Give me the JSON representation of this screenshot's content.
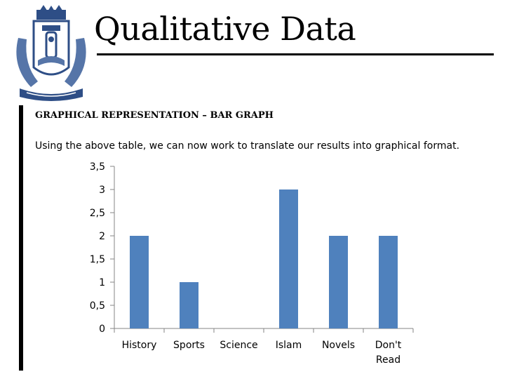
{
  "slide": {
    "title": "Qualitative Data",
    "heading": "GRAPHICAL REPRESENTATION – BAR GRAPH",
    "intro": "Using the above table, we can now work to translate our results into graphical format."
  },
  "colors": {
    "bar": "#4f81bd",
    "axis": "#868686",
    "rule": "#000000"
  },
  "chart_data": {
    "type": "bar",
    "categories": [
      [
        "History"
      ],
      [
        "Sports"
      ],
      [
        "Science"
      ],
      [
        "Islam"
      ],
      [
        "Novels"
      ],
      [
        "Don't",
        "Read"
      ]
    ],
    "values": [
      2,
      1,
      0,
      3,
      2,
      2
    ],
    "yticks": [
      0,
      0.5,
      1,
      1.5,
      2,
      2.5,
      3,
      3.5
    ],
    "ytick_labels": [
      "0",
      "0,5",
      "1",
      "1,5",
      "2",
      "2,5",
      "3",
      "3,5"
    ],
    "ylim": [
      0,
      3.5
    ],
    "grid": false,
    "legend": false
  }
}
